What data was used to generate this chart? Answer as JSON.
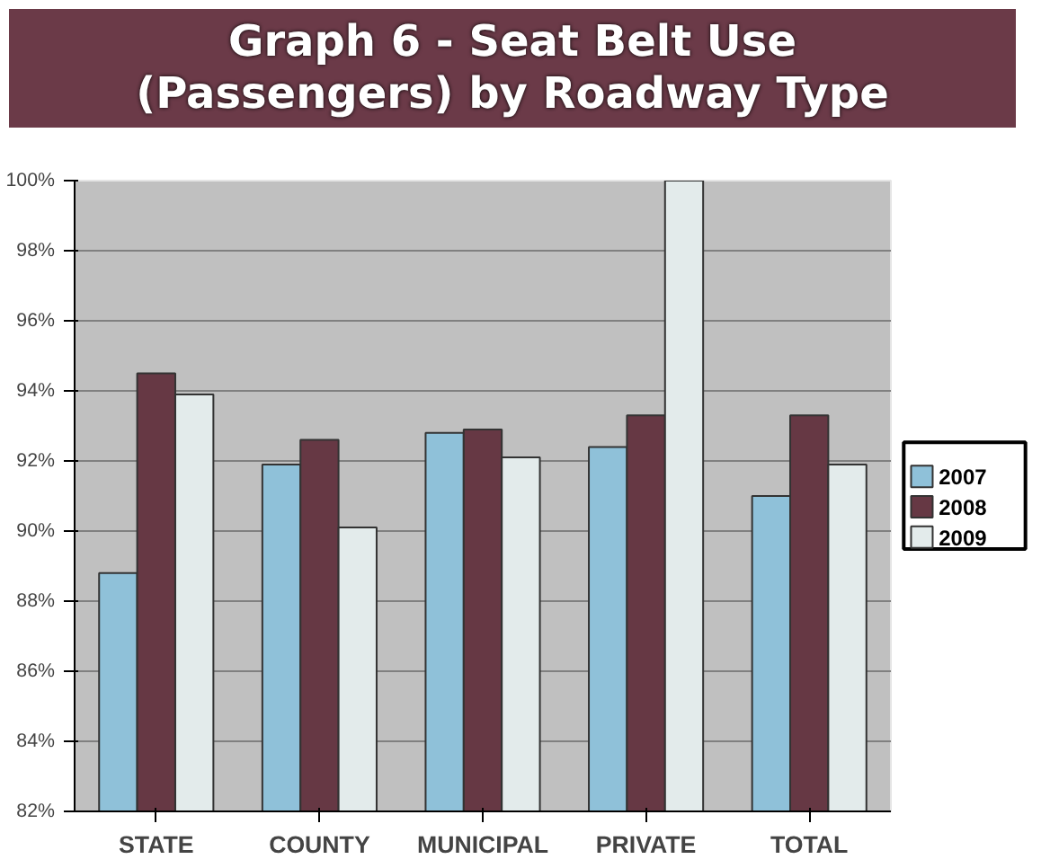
{
  "chart_data": {
    "type": "bar",
    "title": "Graph 6 - Seat Belt Use\n(Passengers) by Roadway Type",
    "categories": [
      "STATE",
      "COUNTY",
      "MUNICIPAL",
      "PRIVATE",
      "TOTAL"
    ],
    "series": [
      {
        "name": "2007",
        "color": "#8fc1d9",
        "values": [
          88.8,
          91.9,
          92.8,
          92.4,
          91.0
        ]
      },
      {
        "name": "2008",
        "color": "#663844",
        "values": [
          94.5,
          92.6,
          92.9,
          93.3,
          93.3
        ]
      },
      {
        "name": "2009",
        "color": "#e3ebeb",
        "values": [
          93.9,
          90.1,
          92.1,
          100,
          91.9
        ]
      }
    ],
    "ylim": [
      82,
      100
    ],
    "yticks": [
      {
        "value": 82,
        "label": "82%"
      },
      {
        "value": 84,
        "label": "84%"
      },
      {
        "value": 86,
        "label": "86%"
      },
      {
        "value": 88,
        "label": "88%"
      },
      {
        "value": 90,
        "label": "90%"
      },
      {
        "value": 92,
        "label": "92%"
      },
      {
        "value": 94,
        "label": "94%"
      },
      {
        "value": 96,
        "label": "96%"
      },
      {
        "value": 98,
        "label": "98%"
      },
      {
        "value": 100,
        "label": "100%"
      }
    ],
    "grid": "y",
    "legend": "right"
  }
}
